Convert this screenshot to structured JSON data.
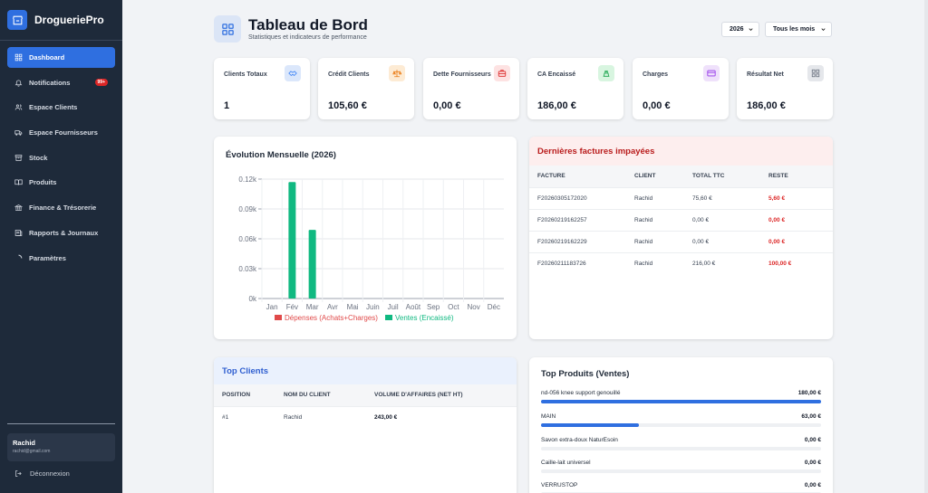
{
  "app": {
    "name": "DrogueriePro"
  },
  "sidebar": {
    "items": [
      {
        "label": "Dashboard",
        "icon": "grid-icon",
        "active": true
      },
      {
        "label": "Notifications",
        "icon": "bell-icon",
        "badge": "99+"
      },
      {
        "label": "Espace Clients",
        "icon": "users-icon"
      },
      {
        "label": "Espace Fournisseurs",
        "icon": "truck-icon"
      },
      {
        "label": "Stock",
        "icon": "box-icon"
      },
      {
        "label": "Produits",
        "icon": "book-icon"
      },
      {
        "label": "Finance & Trésorerie",
        "icon": "bank-icon"
      },
      {
        "label": "Rapports & Journaux",
        "icon": "report-icon"
      },
      {
        "label": "Paramètres",
        "icon": "spinner-icon"
      }
    ],
    "user": {
      "name": "Rachid",
      "email": "rachid@gmail.com"
    },
    "logout_label": "Déconnexion"
  },
  "header": {
    "title": "Tableau de Bord",
    "subtitle": "Statistiques et indicateurs de performance",
    "year_select": "2026",
    "month_select": "Tous les mois"
  },
  "kpis": [
    {
      "label": "Clients Totaux",
      "value": "1",
      "icon": "handshake-icon",
      "color": "#3b82f6",
      "bg": "#dbe7fb"
    },
    {
      "label": "Crédit Clients",
      "value": "105,60 €",
      "icon": "scale-icon",
      "color": "#ea7a12",
      "bg": "#fdebd4"
    },
    {
      "label": "Dette Fournisseurs",
      "value": "0,00 €",
      "icon": "briefcase-icon",
      "color": "#dc2626",
      "bg": "#fde2e2"
    },
    {
      "label": "CA Encaissé",
      "value": "186,00 €",
      "icon": "cash-register-icon",
      "color": "#16a34a",
      "bg": "#d8f5e0"
    },
    {
      "label": "Charges",
      "value": "0,00 €",
      "icon": "credit-card-icon",
      "color": "#9333ea",
      "bg": "#efe1fb"
    },
    {
      "label": "Résultat Net",
      "value": "186,00 €",
      "icon": "grid-icon",
      "color": "#6b7280",
      "bg": "#e5e7eb"
    }
  ],
  "chart_data": {
    "type": "bar",
    "title": "Évolution Mensuelle (2026)",
    "categories": [
      "Jan",
      "Fév",
      "Mar",
      "Avr",
      "Mai",
      "Juin",
      "Juil",
      "Août",
      "Sep",
      "Oct",
      "Nov",
      "Déc"
    ],
    "series": [
      {
        "name": "Dépenses (Achats+Charges)",
        "color": "#e04a4a",
        "values": [
          0,
          0,
          0,
          0,
          0,
          0,
          0,
          0,
          0,
          0,
          0,
          0
        ]
      },
      {
        "name": "Ventes (Encaissé)",
        "color": "#10b981",
        "values": [
          0,
          0.117,
          0.069,
          0,
          0,
          0,
          0,
          0,
          0,
          0,
          0,
          0
        ]
      }
    ],
    "y_ticks": [
      "0k",
      "0.03k",
      "0.06k",
      "0.09k",
      "0.12k"
    ],
    "ylim": [
      0,
      0.12
    ],
    "grid": true,
    "legend": "bottom"
  },
  "invoices": {
    "title": "Dernières factures impayées",
    "columns": [
      "FACTURE",
      "CLIENT",
      "TOTAL TTC",
      "RESTE"
    ],
    "rows": [
      {
        "facture": "F20260305172020",
        "client": "Rachid",
        "total": "75,60 €",
        "reste": "5,60 €"
      },
      {
        "facture": "F20260219162257",
        "client": "Rachid",
        "total": "0,00 €",
        "reste": "0,00 €"
      },
      {
        "facture": "F20260219162229",
        "client": "Rachid",
        "total": "0,00 €",
        "reste": "0,00 €"
      },
      {
        "facture": "F20260211183726",
        "client": "Rachid",
        "total": "216,00 €",
        "reste": "100,00 €"
      }
    ]
  },
  "top_clients": {
    "title": "Top Clients",
    "columns": [
      "POSITION",
      "NOM DU CLIENT",
      "VOLUME D'AFFAIRES (NET HT)"
    ],
    "rows": [
      {
        "position": "#1",
        "name": "Rachid",
        "volume": "243,00 €"
      }
    ]
  },
  "top_products": {
    "title": "Top Produits (Ventes)",
    "items": [
      {
        "name": "nd-056 knee support genouillé",
        "value": "180,00 €",
        "fraction": 1.0
      },
      {
        "name": "MAIN",
        "value": "63,00 €",
        "fraction": 0.35
      },
      {
        "name": "Savon extra-doux NaturEsoin",
        "value": "0,00 €",
        "fraction": 0
      },
      {
        "name": "Caille-lait universel",
        "value": "0,00 €",
        "fraction": 0
      },
      {
        "name": "VERRUSTOP",
        "value": "0,00 €",
        "fraction": 0
      }
    ]
  }
}
